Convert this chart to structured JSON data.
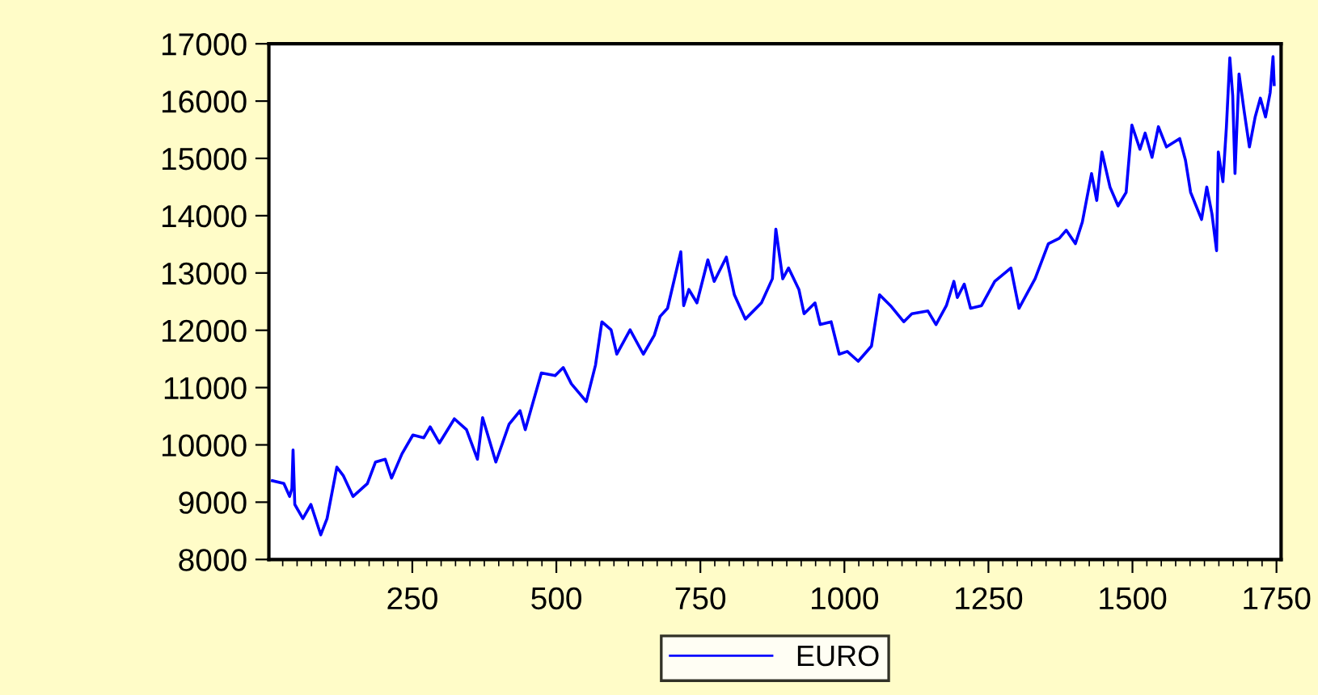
{
  "chart_data": {
    "type": "line",
    "legend": "bottom",
    "grid": false,
    "xlim": [
      1,
      1758
    ],
    "ylim": [
      8000,
      17000
    ],
    "xticks": [
      250,
      500,
      750,
      1000,
      1250,
      1500,
      1750
    ],
    "yticks": [
      8000,
      9000,
      10000,
      11000,
      12000,
      13000,
      14000,
      15000,
      16000,
      17000
    ],
    "series": [
      {
        "name": "EURO",
        "color": "#0000ff",
        "x": [
          7,
          27,
          37,
          41,
          43,
          46,
          60,
          74,
          91,
          102,
          119,
          130,
          147,
          172,
          186,
          203,
          214,
          232,
          251,
          270,
          281,
          297,
          323,
          344,
          363,
          372,
          395,
          418,
          437,
          446,
          474,
          498,
          512,
          526,
          552,
          568,
          579,
          595,
          605,
          628,
          651,
          670,
          680,
          693,
          716,
          721,
          730,
          744,
          763,
          774,
          795,
          809,
          828,
          856,
          875,
          881,
          893,
          903,
          921,
          930,
          949,
          958,
          977,
          991,
          1005,
          1024,
          1047,
          1061,
          1080,
          1103,
          1117,
          1145,
          1159,
          1177,
          1190,
          1196,
          1208,
          1219,
          1238,
          1261,
          1289,
          1303,
          1331,
          1354,
          1373,
          1385,
          1401,
          1413,
          1429,
          1438,
          1447,
          1461,
          1475,
          1489,
          1499,
          1513,
          1522,
          1534,
          1545,
          1559,
          1582,
          1592,
          1601,
          1620,
          1629,
          1638,
          1646,
          1649,
          1657,
          1663,
          1669,
          1674,
          1678,
          1685,
          1694,
          1703,
          1713,
          1722,
          1731,
          1739,
          1744,
          1746
        ],
        "values": [
          9374,
          9326,
          9100,
          9240,
          9910,
          8960,
          8714,
          8960,
          8430,
          8714,
          9610,
          9467,
          9100,
          9326,
          9700,
          9750,
          9420,
          9843,
          10173,
          10125,
          10314,
          10032,
          10455,
          10266,
          9750,
          10475,
          9700,
          10362,
          10596,
          10266,
          11254,
          11208,
          11349,
          11067,
          10757,
          11395,
          12148,
          12007,
          11583,
          12007,
          11583,
          11913,
          12241,
          12383,
          13370,
          12430,
          12712,
          12478,
          13229,
          12853,
          13276,
          12619,
          12195,
          12478,
          12900,
          13765,
          12900,
          13088,
          12712,
          12289,
          12478,
          12100,
          12148,
          11583,
          11631,
          11460,
          11724,
          12619,
          12430,
          12148,
          12289,
          12337,
          12100,
          12430,
          12853,
          12571,
          12806,
          12383,
          12430,
          12853,
          13088,
          12383,
          12900,
          13511,
          13606,
          13747,
          13511,
          13889,
          14735,
          14265,
          15111,
          14500,
          14171,
          14406,
          15582,
          15159,
          15441,
          15018,
          15553,
          15200,
          15345,
          14969,
          14406,
          13934,
          14500,
          14030,
          13390,
          15111,
          14594,
          15535,
          16756,
          16099,
          14735,
          16474,
          15816,
          15200,
          15723,
          16052,
          15723,
          16146,
          16776,
          16287
        ]
      }
    ]
  }
}
